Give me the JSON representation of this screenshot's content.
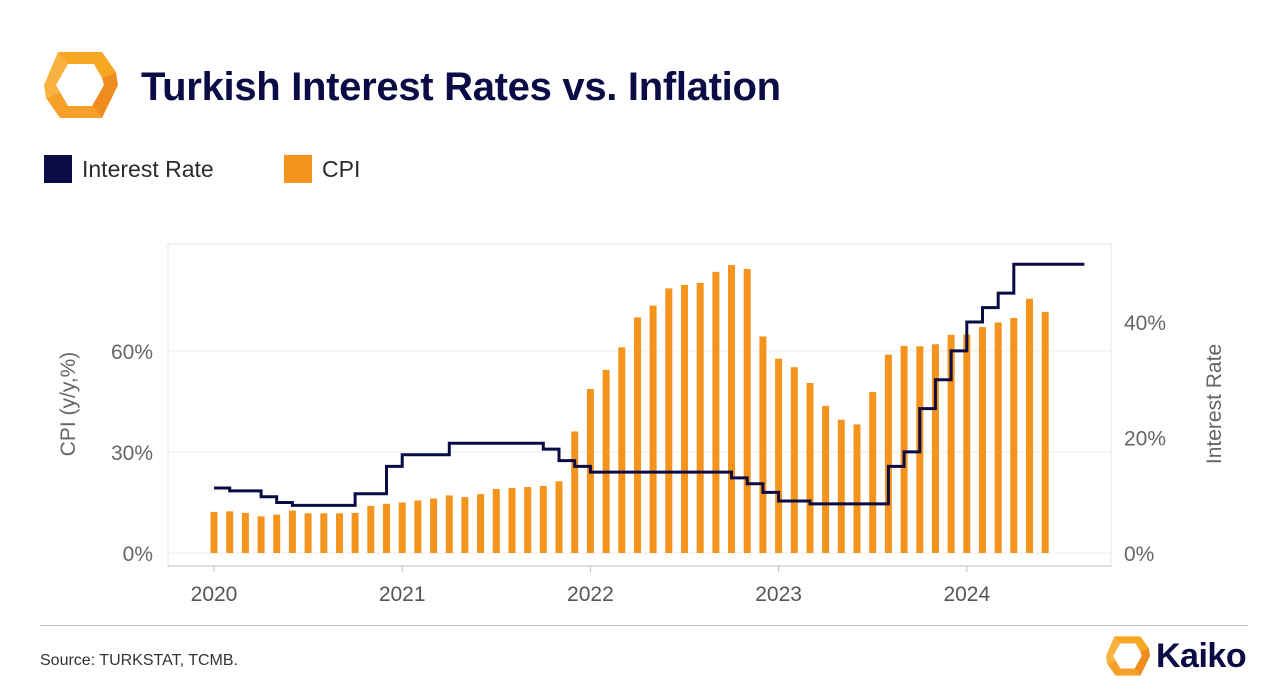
{
  "header": {
    "title": "Turkish Interest Rates vs. Inflation",
    "logo_icon": "kaiko-logo-icon"
  },
  "legend": [
    {
      "label": "Interest Rate",
      "color": "#0b0b45"
    },
    {
      "label": "CPI",
      "color": "#f5941d"
    }
  ],
  "chart_data": {
    "type": "bar+line",
    "title": "Turkish Interest Rates vs. Inflation",
    "x_ticks": [
      "2020",
      "2021",
      "2022",
      "2023",
      "2024"
    ],
    "y_left": {
      "label": "CPI (y/y,%)",
      "ticks": [
        "0%",
        "30%",
        "60%"
      ],
      "range": [
        0,
        90
      ]
    },
    "y_right": {
      "label": "Interest Rate",
      "ticks": [
        "0%",
        "20%",
        "40%"
      ],
      "range": [
        0,
        52
      ]
    },
    "grid": true,
    "series": [
      {
        "name": "CPI",
        "type": "bar",
        "axis": "left",
        "color": "#f5941d",
        "x": [
          "2020-01",
          "2020-02",
          "2020-03",
          "2020-04",
          "2020-05",
          "2020-06",
          "2020-07",
          "2020-08",
          "2020-09",
          "2020-10",
          "2020-11",
          "2020-12",
          "2021-01",
          "2021-02",
          "2021-03",
          "2021-04",
          "2021-05",
          "2021-06",
          "2021-07",
          "2021-08",
          "2021-09",
          "2021-10",
          "2021-11",
          "2021-12",
          "2022-01",
          "2022-02",
          "2022-03",
          "2022-04",
          "2022-05",
          "2022-06",
          "2022-07",
          "2022-08",
          "2022-09",
          "2022-10",
          "2022-11",
          "2022-12",
          "2023-01",
          "2023-02",
          "2023-03",
          "2023-04",
          "2023-05",
          "2023-06",
          "2023-07",
          "2023-08",
          "2023-09",
          "2023-10",
          "2023-11",
          "2023-12",
          "2024-01",
          "2024-02",
          "2024-03",
          "2024-04",
          "2024-05",
          "2024-06"
        ],
        "values": [
          12.2,
          12.4,
          11.9,
          10.9,
          11.4,
          12.6,
          11.8,
          11.8,
          11.8,
          11.9,
          14.0,
          14.6,
          15.0,
          15.6,
          16.2,
          17.1,
          16.6,
          17.5,
          19.0,
          19.3,
          19.6,
          19.9,
          21.3,
          36.1,
          48.7,
          54.4,
          61.1,
          70.0,
          73.5,
          78.6,
          79.6,
          80.2,
          83.5,
          85.5,
          84.4,
          64.3,
          57.7,
          55.2,
          50.5,
          43.7,
          39.6,
          38.2,
          47.8,
          58.9,
          61.5,
          61.4,
          62.0,
          64.8,
          64.9,
          67.1,
          68.5,
          69.8,
          75.5,
          71.6
        ]
      },
      {
        "name": "Interest Rate",
        "type": "step-line",
        "axis": "right",
        "color": "#0b0b45",
        "x": [
          "2020-01",
          "2020-02",
          "2020-03",
          "2020-04",
          "2020-05",
          "2020-06",
          "2020-07",
          "2020-08",
          "2020-09",
          "2020-10",
          "2020-11",
          "2020-12",
          "2021-01",
          "2021-02",
          "2021-03",
          "2021-04",
          "2021-05",
          "2021-06",
          "2021-07",
          "2021-08",
          "2021-09",
          "2021-10",
          "2021-11",
          "2021-12",
          "2022-01",
          "2022-02",
          "2022-03",
          "2022-04",
          "2022-05",
          "2022-06",
          "2022-07",
          "2022-08",
          "2022-09",
          "2022-10",
          "2022-11",
          "2022-12",
          "2023-01",
          "2023-02",
          "2023-03",
          "2023-04",
          "2023-05",
          "2023-06",
          "2023-07",
          "2023-08",
          "2023-09",
          "2023-10",
          "2023-11",
          "2023-12",
          "2024-01",
          "2024-02",
          "2024-03",
          "2024-04",
          "2024-05",
          "2024-06",
          "2024-07"
        ],
        "values": [
          11.25,
          10.75,
          10.75,
          9.75,
          8.75,
          8.25,
          8.25,
          8.25,
          8.25,
          10.25,
          10.25,
          15.0,
          17.0,
          17.0,
          17.0,
          19.0,
          19.0,
          19.0,
          19.0,
          19.0,
          19.0,
          18.0,
          16.0,
          15.0,
          14.0,
          14.0,
          14.0,
          14.0,
          14.0,
          14.0,
          14.0,
          14.0,
          14.0,
          13.0,
          12.0,
          10.5,
          9.0,
          9.0,
          8.5,
          8.5,
          8.5,
          8.5,
          8.5,
          15.0,
          17.5,
          25.0,
          30.0,
          35.0,
          40.0,
          42.5,
          45.0,
          50.0,
          50.0,
          50.0,
          50.0
        ]
      }
    ]
  },
  "footer": {
    "source": "Source: TURKSTAT, TCMB.",
    "brand": "Kaiko",
    "brand_icon": "kaiko-logo-icon"
  }
}
